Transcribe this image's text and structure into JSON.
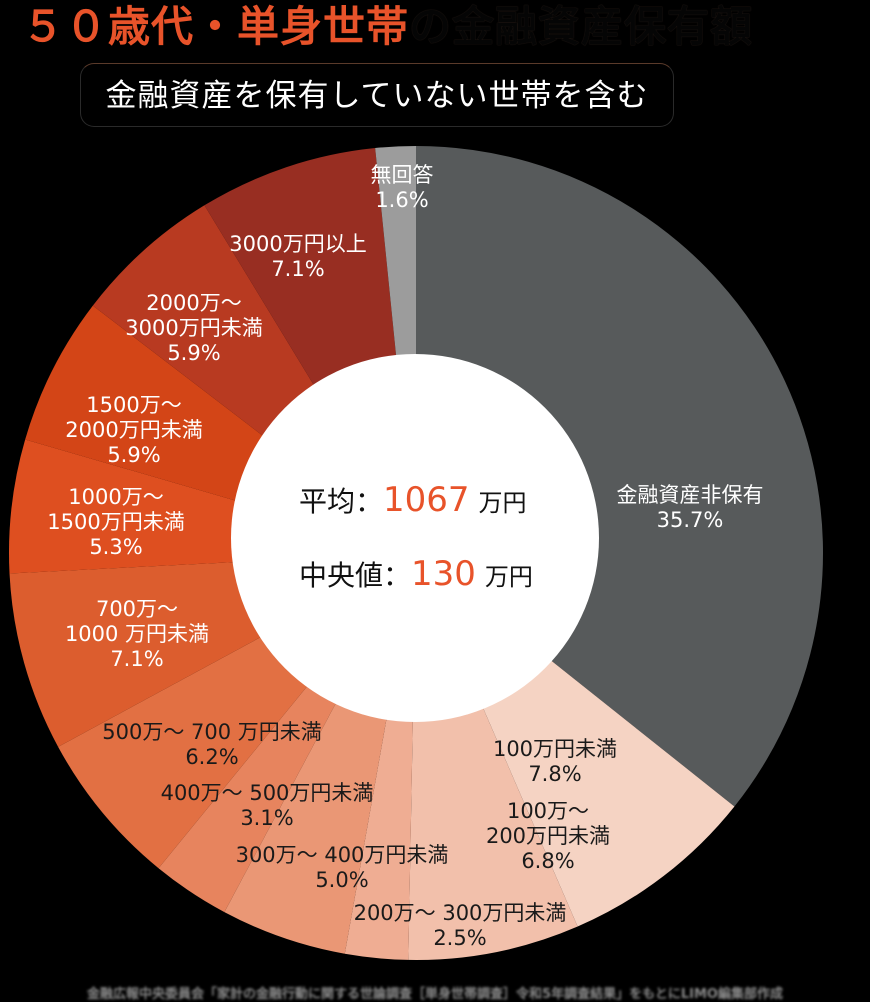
{
  "title": {
    "accent": "５０歳代・単身世帯",
    "rest": "の金融資産保有額"
  },
  "subtitle": "金融資産を保有していない世帯を含む",
  "center": {
    "mean_label": "平均：",
    "mean_value": "1067",
    "mean_unit": "万円",
    "median_label": "中央値：",
    "median_value": "130",
    "median_unit": "万円"
  },
  "source": "金融広報中央委員会「家計の金融行動に関する世論調査［単身世帯調査］令和5年調査結果」をもとにLIMO編集部作成",
  "chart_data": {
    "type": "pie",
    "donut": true,
    "title": "50歳代・単身世帯の金融資産保有額",
    "subtitle": "金融資産を保有していない世帯を含む",
    "start_angle": "12 o'clock, clockwise",
    "categories": [
      "金融資産非保有",
      "100万円未満",
      "100万～200万円未満",
      "200万～300万円未満",
      "300万～400万円未満",
      "400万～500万円未満",
      "500万～700万円未満",
      "700万～1000万円未満",
      "1000万～1500万円未満",
      "1500万～2000万円未満",
      "2000万～3000万円未満",
      "3000万円以上",
      "無回答"
    ],
    "values": [
      35.7,
      7.8,
      6.8,
      2.5,
      5.0,
      3.1,
      6.2,
      7.1,
      5.3,
      5.9,
      5.9,
      7.1,
      1.6
    ],
    "unit": "%",
    "colors": [
      "#575a5b",
      "#f5d3c3",
      "#f2c0ab",
      "#efad93",
      "#ea9775",
      "#e7845e",
      "#e27043",
      "#dc5d2e",
      "#de4f20",
      "#d34517",
      "#b83a21",
      "#982e22",
      "#9c9c9c"
    ],
    "labels": [
      [
        "金融資産非保有",
        "35.7%"
      ],
      [
        "100万円未満",
        "7.8%"
      ],
      [
        "100万～",
        "200万円未満",
        "6.8%"
      ],
      [
        "200万～ 300万円未満",
        "2.5%"
      ],
      [
        "300万～ 400万円未満",
        "5.0%"
      ],
      [
        "400万～ 500万円未満",
        "3.1%"
      ],
      [
        "500万～ 700 万円未満",
        "6.2%"
      ],
      [
        "700万～",
        "1000 万円未満",
        "7.1%"
      ],
      [
        "1000万～",
        "1500万円未満",
        "5.3%"
      ],
      [
        "1500万～",
        "2000万円未満",
        "5.9%"
      ],
      [
        "2000万～",
        "3000万円未満",
        "5.9%"
      ],
      [
        "3000万円以上",
        "7.1%"
      ],
      [
        "無回答",
        "1.6%"
      ]
    ],
    "annotations": {
      "mean": "平均：1067万円",
      "median": "中央値：130万円"
    },
    "legend": "none (labels on slices)"
  }
}
